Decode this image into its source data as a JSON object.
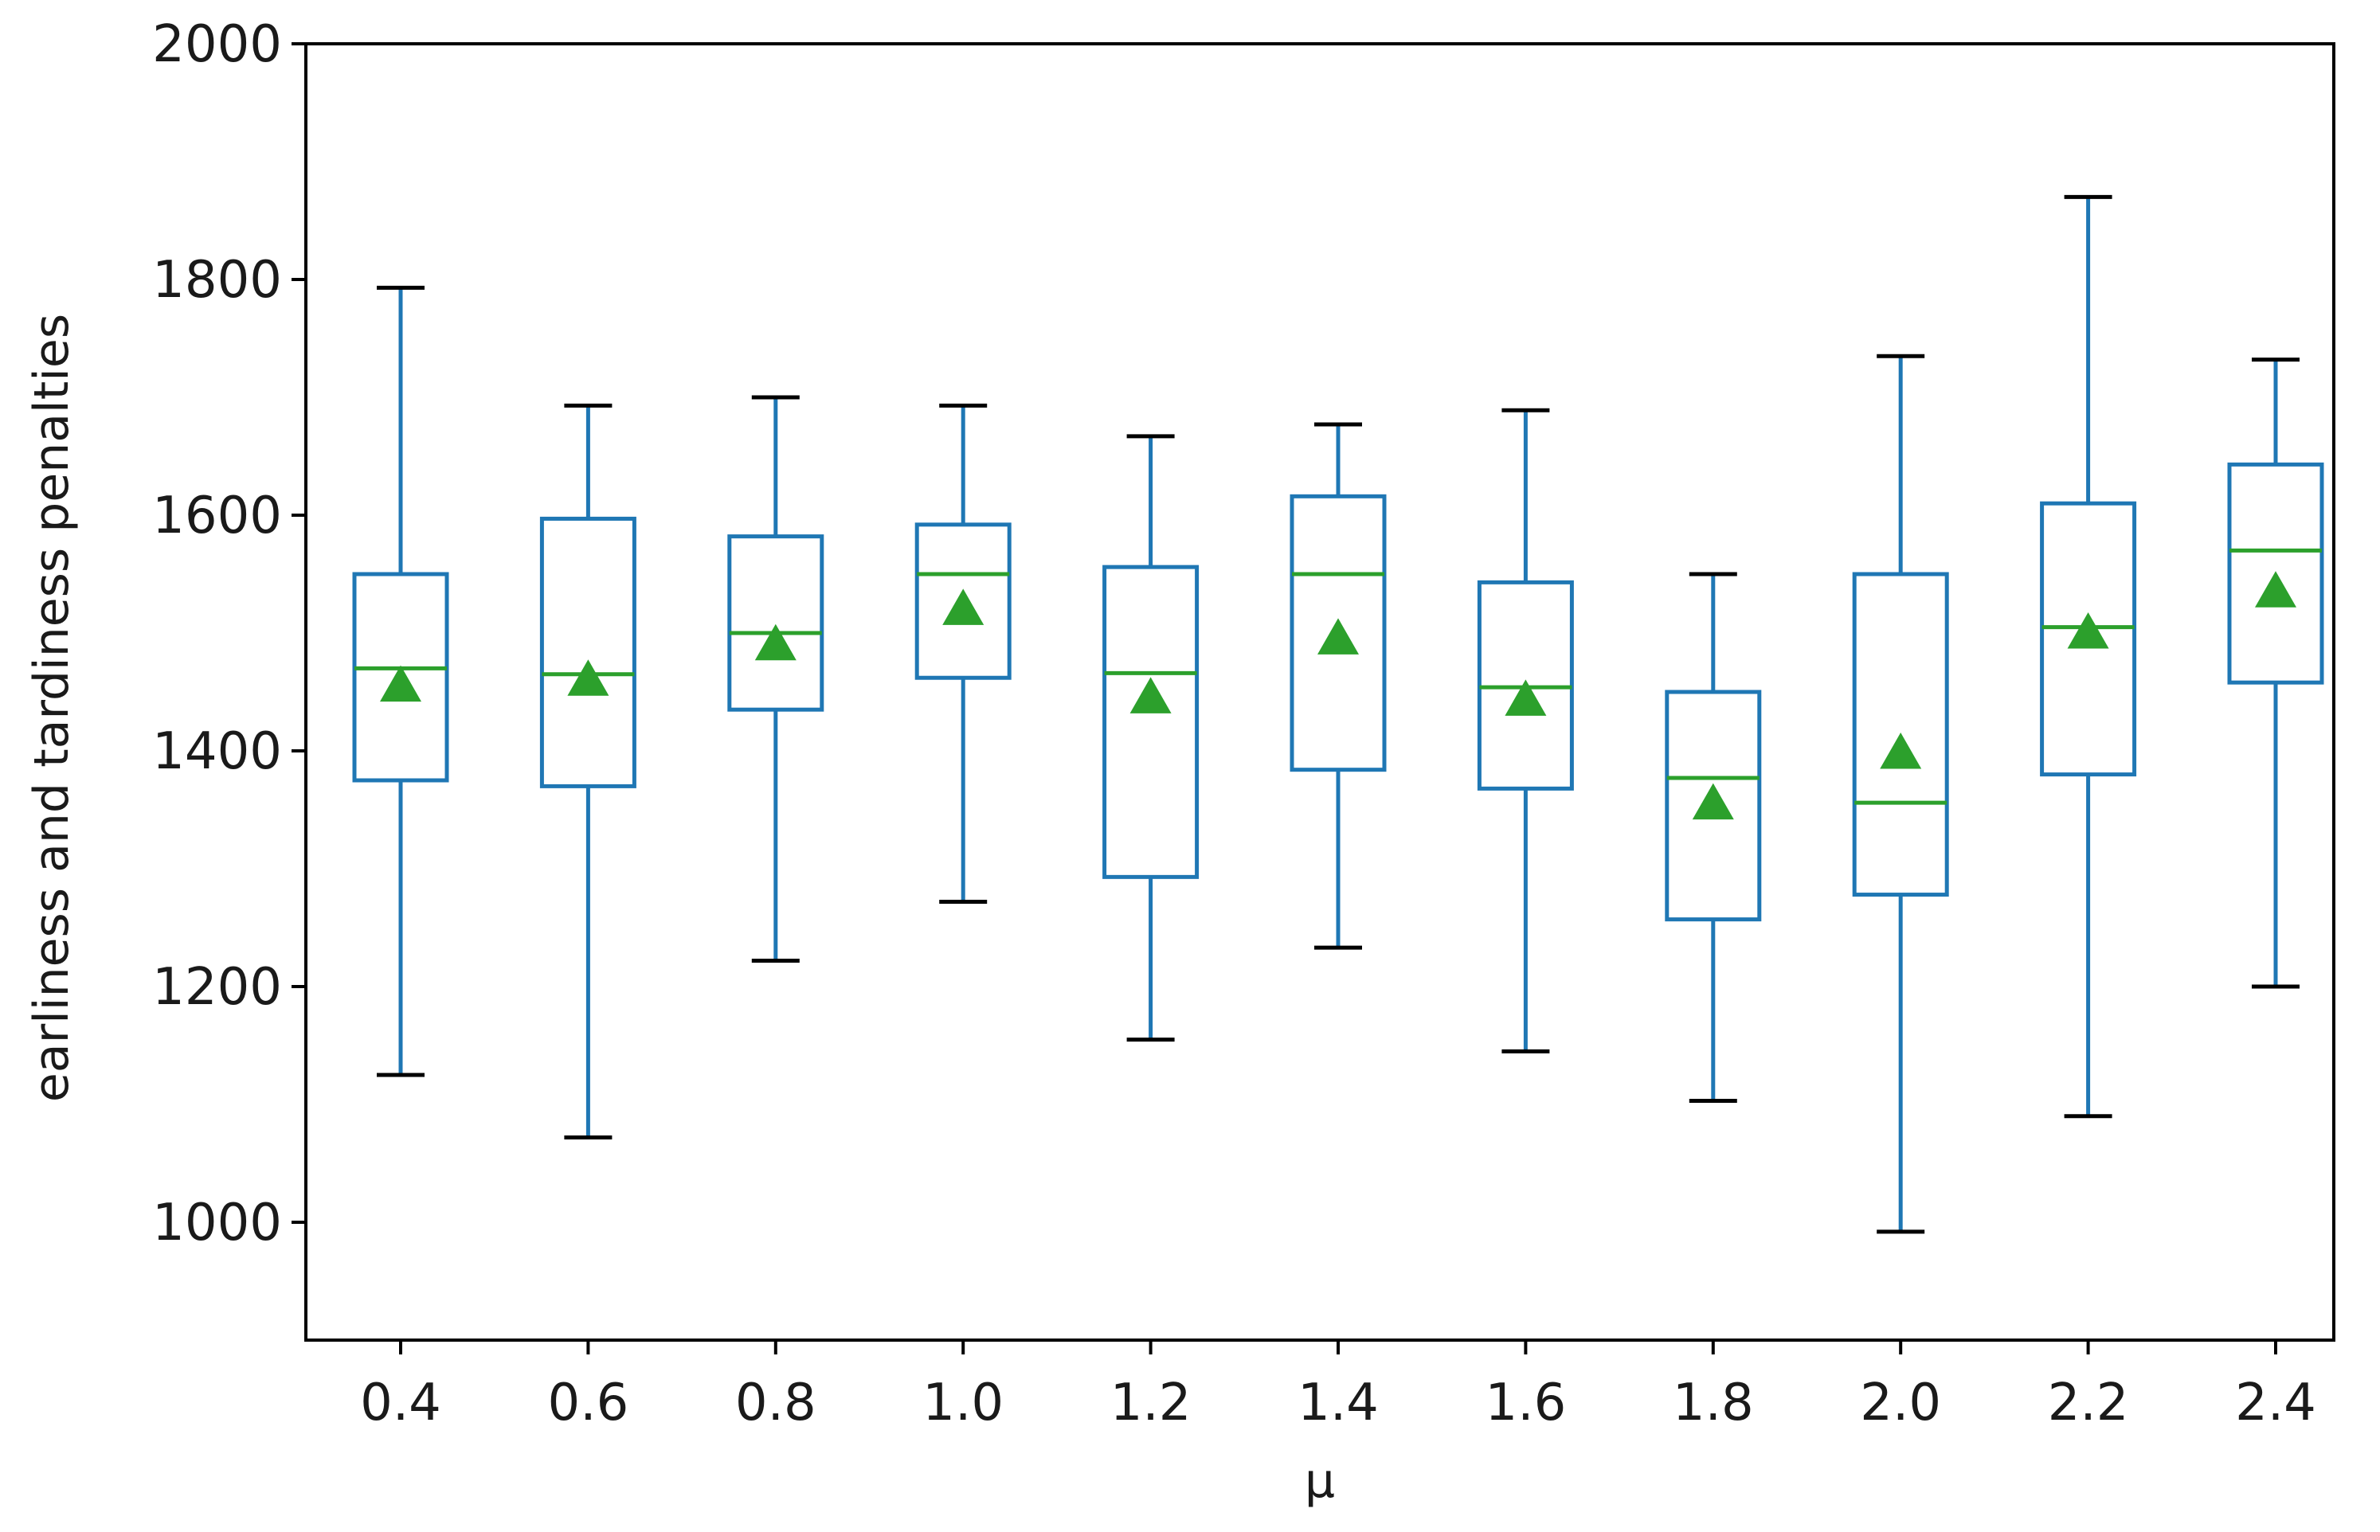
{
  "chart_data": {
    "type": "box",
    "title": "",
    "xlabel": "μ",
    "ylabel": "earliness and tardiness penalties",
    "ylim": [
      900,
      2000
    ],
    "yticks": [
      1000,
      1200,
      1400,
      1600,
      1800,
      2000
    ],
    "grid": false,
    "legend": "none",
    "categories": [
      "0.4",
      "0.6",
      "0.8",
      "1.0",
      "1.2",
      "1.4",
      "1.6",
      "1.8",
      "2.0",
      "2.2",
      "2.4"
    ],
    "boxes": [
      {
        "whisker_low": 1125,
        "q1": 1375,
        "median": 1470,
        "q3": 1550,
        "whisker_high": 1793,
        "mean": 1455
      },
      {
        "whisker_low": 1072,
        "q1": 1370,
        "median": 1465,
        "q3": 1597,
        "whisker_high": 1693,
        "mean": 1460
      },
      {
        "whisker_low": 1222,
        "q1": 1435,
        "median": 1500,
        "q3": 1582,
        "whisker_high": 1700,
        "mean": 1490
      },
      {
        "whisker_low": 1272,
        "q1": 1462,
        "median": 1550,
        "q3": 1592,
        "whisker_high": 1693,
        "mean": 1520
      },
      {
        "whisker_low": 1155,
        "q1": 1293,
        "median": 1466,
        "q3": 1556,
        "whisker_high": 1667,
        "mean": 1445
      },
      {
        "whisker_low": 1233,
        "q1": 1384,
        "median": 1550,
        "q3": 1616,
        "whisker_high": 1677,
        "mean": 1495
      },
      {
        "whisker_low": 1145,
        "q1": 1368,
        "median": 1454,
        "q3": 1543,
        "whisker_high": 1689,
        "mean": 1443
      },
      {
        "whisker_low": 1103,
        "q1": 1257,
        "median": 1377,
        "q3": 1450,
        "whisker_high": 1550,
        "mean": 1355
      },
      {
        "whisker_low": 992,
        "q1": 1278,
        "median": 1356,
        "q3": 1550,
        "whisker_high": 1735,
        "mean": 1398
      },
      {
        "whisker_low": 1090,
        "q1": 1380,
        "median": 1505,
        "q3": 1610,
        "whisker_high": 1870,
        "mean": 1500
      },
      {
        "whisker_low": 1200,
        "q1": 1458,
        "median": 1570,
        "q3": 1643,
        "whisker_high": 1732,
        "mean": 1535
      }
    ],
    "colors": {
      "box": "#1f77b4",
      "median": "#2ca02c",
      "mean_marker": "#2ca02c",
      "caps": "#000000",
      "frame": "#000000"
    }
  }
}
